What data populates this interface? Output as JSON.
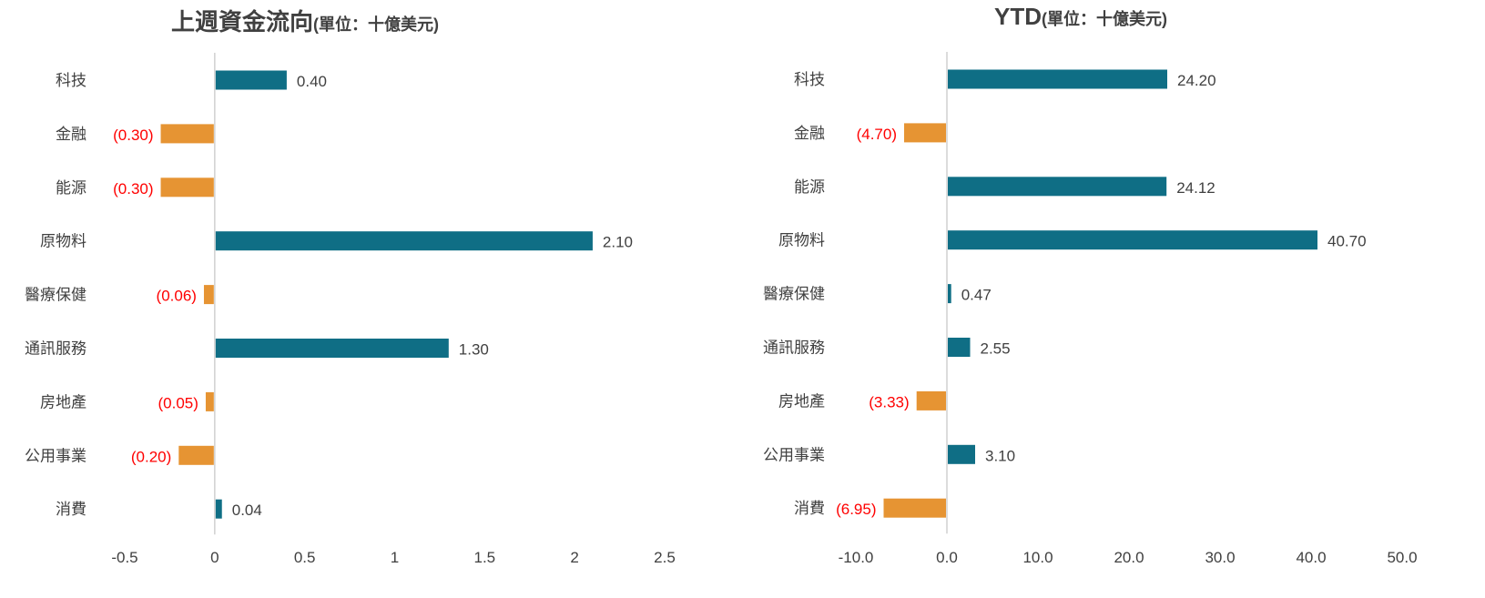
{
  "chart_data": [
    {
      "type": "bar",
      "orientation": "horizontal",
      "title": "上週資金流向",
      "subtitle": "(單位：十億美元)",
      "categories": [
        "科技",
        "金融",
        "能源",
        "原物料",
        "醫療保健",
        "通訊服務",
        "房地產",
        "公用事業",
        "消費"
      ],
      "values": [
        0.4,
        -0.3,
        -0.3,
        2.1,
        -0.06,
        1.3,
        -0.05,
        -0.2,
        0.04
      ],
      "value_labels": [
        "0.40",
        "(0.30)",
        "(0.30)",
        "2.10",
        "(0.06)",
        "1.30",
        "(0.05)",
        "(0.20)",
        "0.04"
      ],
      "xlim": [
        -0.5,
        2.5
      ],
      "xticks": [
        -0.5,
        0,
        0.5,
        1,
        1.5,
        2,
        2.5
      ],
      "xtick_labels": [
        "-0.5",
        "0",
        "0.5",
        "1",
        "1.5",
        "2",
        "2.5"
      ],
      "grid": false
    },
    {
      "type": "bar",
      "orientation": "horizontal",
      "title": "YTD",
      "subtitle": "(單位：十億美元)",
      "categories": [
        "科技",
        "金融",
        "能源",
        "原物料",
        "醫療保健",
        "通訊服務",
        "房地產",
        "公用事業",
        "消費"
      ],
      "values": [
        24.2,
        -4.7,
        24.12,
        40.7,
        0.47,
        2.55,
        -3.33,
        3.1,
        -6.95
      ],
      "value_labels": [
        "24.20",
        "(4.70)",
        "24.12",
        "40.70",
        "0.47",
        "2.55",
        "(3.33)",
        "3.10",
        "(6.95)"
      ],
      "xlim": [
        -10,
        50
      ],
      "xticks": [
        -10,
        0,
        10,
        20,
        30,
        40,
        50
      ],
      "xtick_labels": [
        "-10.0",
        "0.0",
        "10.0",
        "20.0",
        "30.0",
        "40.0",
        "50.0"
      ],
      "grid": false
    }
  ],
  "colors": {
    "positive_bar": "#0f6e85",
    "negative_bar": "#e69433",
    "positive_label": "#404040",
    "negative_label": "#ff0000",
    "axis_line": "#d0d0d0"
  }
}
